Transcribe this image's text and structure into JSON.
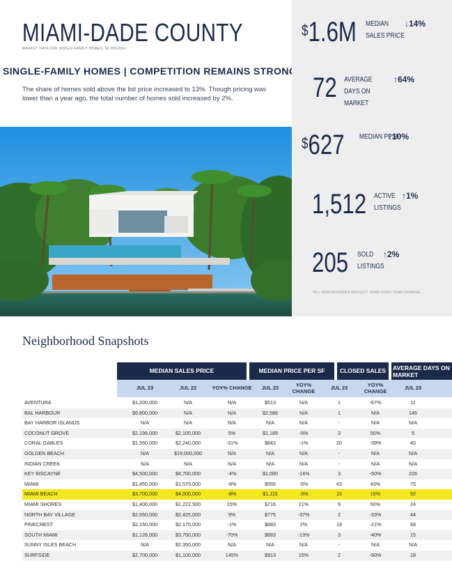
{
  "header": {
    "county": "MIAMI-DADE COUNTY",
    "subtitle": "MARKET DATA FOR SINGLE-FAMILY HOMES, $1,000,000+",
    "headline": "SINGLE-FAMILY HOMES | COMPETITION REMAINS STRONG",
    "body": "The share of homes sold above the list price increased to 13%. Though pricing was lower than a year ago, the total number of homes sold increased by 2%."
  },
  "stats": [
    {
      "dollar": "$",
      "value": "1.6M",
      "label": "MEDIAN SALES PRICE",
      "arrow": "↓",
      "change": "14%"
    },
    {
      "dollar": "",
      "value": "72",
      "label": "AVERAGE DAYS ON MARKET",
      "arrow": "↑",
      "change": "64%"
    },
    {
      "dollar": "$",
      "value": "627",
      "label": "MEDIAN PPSF",
      "arrow": "↓",
      "change": "10%"
    },
    {
      "dollar": "",
      "value": "1,512",
      "label": "ACTIVE LISTINGS",
      "arrow": "↑",
      "change": "1%"
    },
    {
      "dollar": "",
      "value": "205",
      "label": "SOLD LISTINGS",
      "arrow": "↑",
      "change": "2%"
    }
  ],
  "stats_footnote": "*ALL PERCENTAGES REFLECT YEAR OVER YEAR CHANGE.",
  "table": {
    "title": "Neighborhood Snapshots",
    "groups": [
      "MEDIAN SALES PRICE",
      "MEDIAN PRICE PER SF",
      "CLOSED SALES",
      "AVERAGE DAYS ON MARKET"
    ],
    "subheaders": [
      "JUL 23",
      "JUL 22",
      "YOY% CHANGE",
      "JUL 23",
      "YOY% CHANGE",
      "JUL 23",
      "YOY% CHANGE",
      "JUL 23"
    ],
    "rows": [
      {
        "name": "AVENTURA",
        "cells": [
          "$1,200,000",
          "N/A",
          "N/A",
          "$513",
          "N/A",
          "1",
          "-67%",
          "11"
        ]
      },
      {
        "name": "BAL HARBOUR",
        "cells": [
          "$6,800,000",
          "N/A",
          "N/A",
          "$2,586",
          "N/A",
          "1",
          "N/A",
          "146"
        ]
      },
      {
        "name": "BAY HARBOR ISLANDS",
        "cells": [
          "N/A",
          "N/A",
          "N/A",
          "N/A",
          "N/A",
          "-",
          "N/A",
          "N/A"
        ]
      },
      {
        "name": "COCONUT GROVE",
        "cells": [
          "$2,196,000",
          "$2,100,000",
          "5%",
          "$1,189",
          "-5%",
          "3",
          "50%",
          "5"
        ]
      },
      {
        "name": "CORAL GABLES",
        "cells": [
          "$1,550,000",
          "$2,240,000",
          "-31%",
          "$843",
          "-1%",
          "20",
          "-39%",
          "40"
        ]
      },
      {
        "name": "GOLDEN BEACH",
        "cells": [
          "N/A",
          "$19,000,000",
          "N/A",
          "N/A",
          "N/A",
          "-",
          "N/A",
          "N/A"
        ]
      },
      {
        "name": "INDIAN CREEK",
        "cells": [
          "N/A",
          "N/A",
          "N/A",
          "N/A",
          "N/A",
          "-",
          "N/A",
          "N/A"
        ]
      },
      {
        "name": "KEY BISCAYNE",
        "cells": [
          "$4,500,000",
          "$4,700,000",
          "-4%",
          "$1,080",
          "-14%",
          "3",
          "-50%",
          "226"
        ]
      },
      {
        "name": "MIAMI",
        "cells": [
          "$1,450,000",
          "$1,575,000",
          "-8%",
          "$556",
          "-5%",
          "63",
          "43%",
          "75"
        ]
      },
      {
        "name": "MIAMI BEACH",
        "cells": [
          "$3,700,000",
          "$4,000,000",
          "-8%",
          "$1,115",
          "-3%",
          "15",
          "15%",
          "92"
        ],
        "highlight": true
      },
      {
        "name": "MIAMI SHORES",
        "cells": [
          "$1,400,000",
          "$1,222,500",
          "15%",
          "$716",
          "21%",
          "9",
          "50%",
          "24"
        ]
      },
      {
        "name": "NORTH BAY VILLAGE",
        "cells": [
          "$2,650,000",
          "$2,425,000",
          "9%",
          "$775",
          "-37%",
          "2",
          "-33%",
          "44"
        ]
      },
      {
        "name": "PINECREST",
        "cells": [
          "$2,150,000",
          "$2,175,000",
          "-1%",
          "$683",
          "2%",
          "19",
          "-21%",
          "68"
        ]
      },
      {
        "name": "SOUTH MIAMI",
        "cells": [
          "$1,126,000",
          "$3,750,000",
          "-70%",
          "$683",
          "-13%",
          "3",
          "-40%",
          "15"
        ]
      },
      {
        "name": "SUNNY ISLES BEACH",
        "cells": [
          "N/A",
          "$2,350,000",
          "N/A",
          "N/A",
          "N/A",
          "-",
          "N/A",
          "N/A"
        ]
      },
      {
        "name": "SURFSIDE",
        "cells": [
          "$2,700,000",
          "$1,100,000",
          "145%",
          "$913",
          "15%",
          "2",
          "-60%",
          "18"
        ]
      }
    ]
  },
  "colors": {
    "navy": "#1b2a4a",
    "light_blue": "#c7d8ee",
    "highlight": "#f2e81c",
    "stats_bg": "#eeeeee"
  }
}
